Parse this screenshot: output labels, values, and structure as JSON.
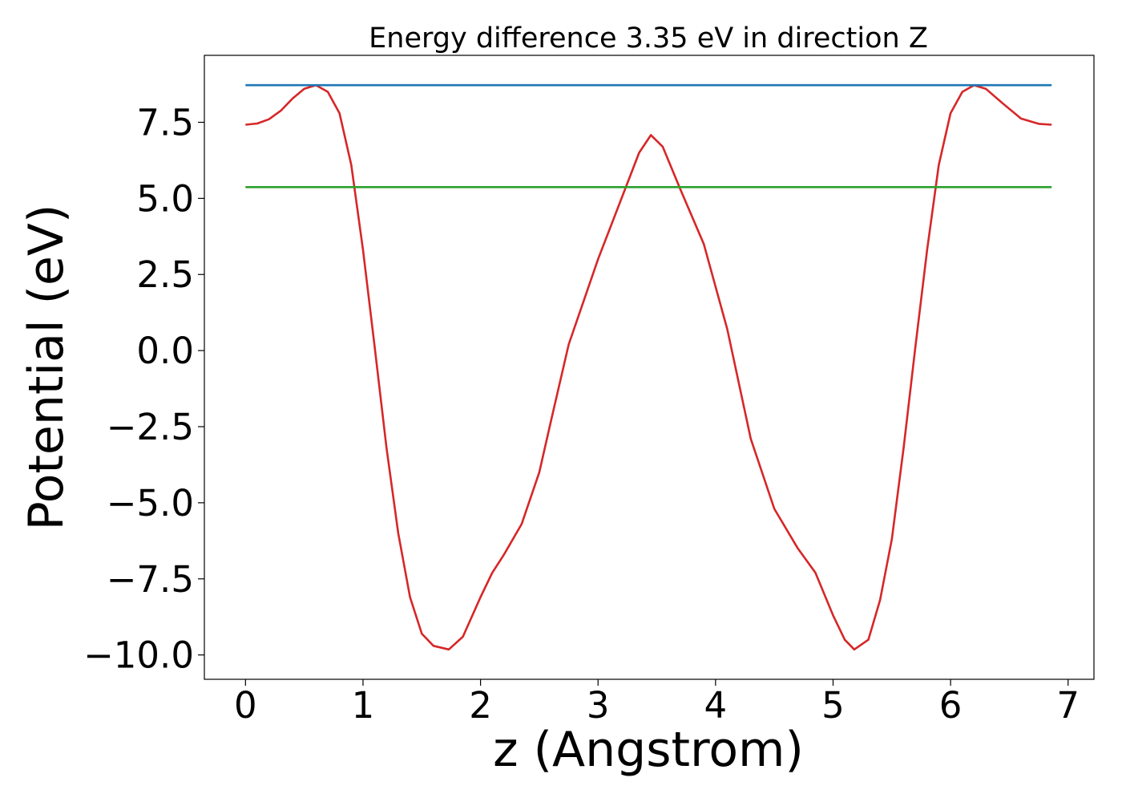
{
  "chart_data": {
    "type": "line",
    "title": "Energy difference 3.35 eV in direction Z",
    "xlabel": "z (Angstrom)",
    "ylabel": "Potential (eV)",
    "xlim": [
      -0.35,
      7.22
    ],
    "ylim": [
      -10.8,
      9.7
    ],
    "xticks": [
      0,
      1,
      2,
      3,
      4,
      5,
      6,
      7
    ],
    "xtick_labels": [
      "0",
      "1",
      "2",
      "3",
      "4",
      "5",
      "6",
      "7"
    ],
    "yticks": [
      -10.0,
      -7.5,
      -5.0,
      -2.5,
      0.0,
      2.5,
      5.0,
      7.5
    ],
    "ytick_labels": [
      "−10.0",
      "−7.5",
      "−5.0",
      "−2.5",
      "0.0",
      "2.5",
      "5.0",
      "7.5"
    ],
    "grid": false,
    "legend": "none",
    "series": [
      {
        "color": "#d62728",
        "x": [
          0,
          0.1,
          0.2,
          0.3,
          0.4,
          0.5,
          0.6,
          0.7,
          0.8,
          0.9,
          1.0,
          1.1,
          1.2,
          1.3,
          1.4,
          1.5,
          1.6,
          1.73,
          1.85,
          2.0,
          2.1,
          2.2,
          2.35,
          2.5,
          2.6,
          2.75,
          3.0,
          3.2,
          3.35,
          3.45,
          3.55,
          3.7,
          3.9,
          4.1,
          4.3,
          4.5,
          4.7,
          4.85,
          5.0,
          5.1,
          5.18,
          5.3,
          5.4,
          5.5,
          5.6,
          5.7,
          5.8,
          5.9,
          6.0,
          6.1,
          6.2,
          6.3,
          6.45,
          6.6,
          6.75,
          6.86
        ],
        "y": [
          7.42,
          7.46,
          7.6,
          7.88,
          8.28,
          8.6,
          8.72,
          8.5,
          7.8,
          6.1,
          3.3,
          0.1,
          -3.2,
          -6.0,
          -8.1,
          -9.3,
          -9.7,
          -9.82,
          -9.4,
          -8.1,
          -7.3,
          -6.7,
          -5.7,
          -4.0,
          -2.3,
          0.2,
          3.0,
          5.0,
          6.5,
          7.08,
          6.7,
          5.3,
          3.5,
          0.7,
          -2.9,
          -5.2,
          -6.5,
          -7.3,
          -8.7,
          -9.5,
          -9.82,
          -9.5,
          -8.2,
          -6.2,
          -3.2,
          0.1,
          3.3,
          6.1,
          7.8,
          8.5,
          8.72,
          8.6,
          8.1,
          7.62,
          7.45,
          7.42
        ]
      },
      {
        "color": "#1f77b4",
        "x": [
          0,
          6.86
        ],
        "y": [
          8.72,
          8.72
        ]
      },
      {
        "color": "#2ca02c",
        "x": [
          0,
          6.86
        ],
        "y": [
          5.37,
          5.37
        ]
      }
    ]
  }
}
